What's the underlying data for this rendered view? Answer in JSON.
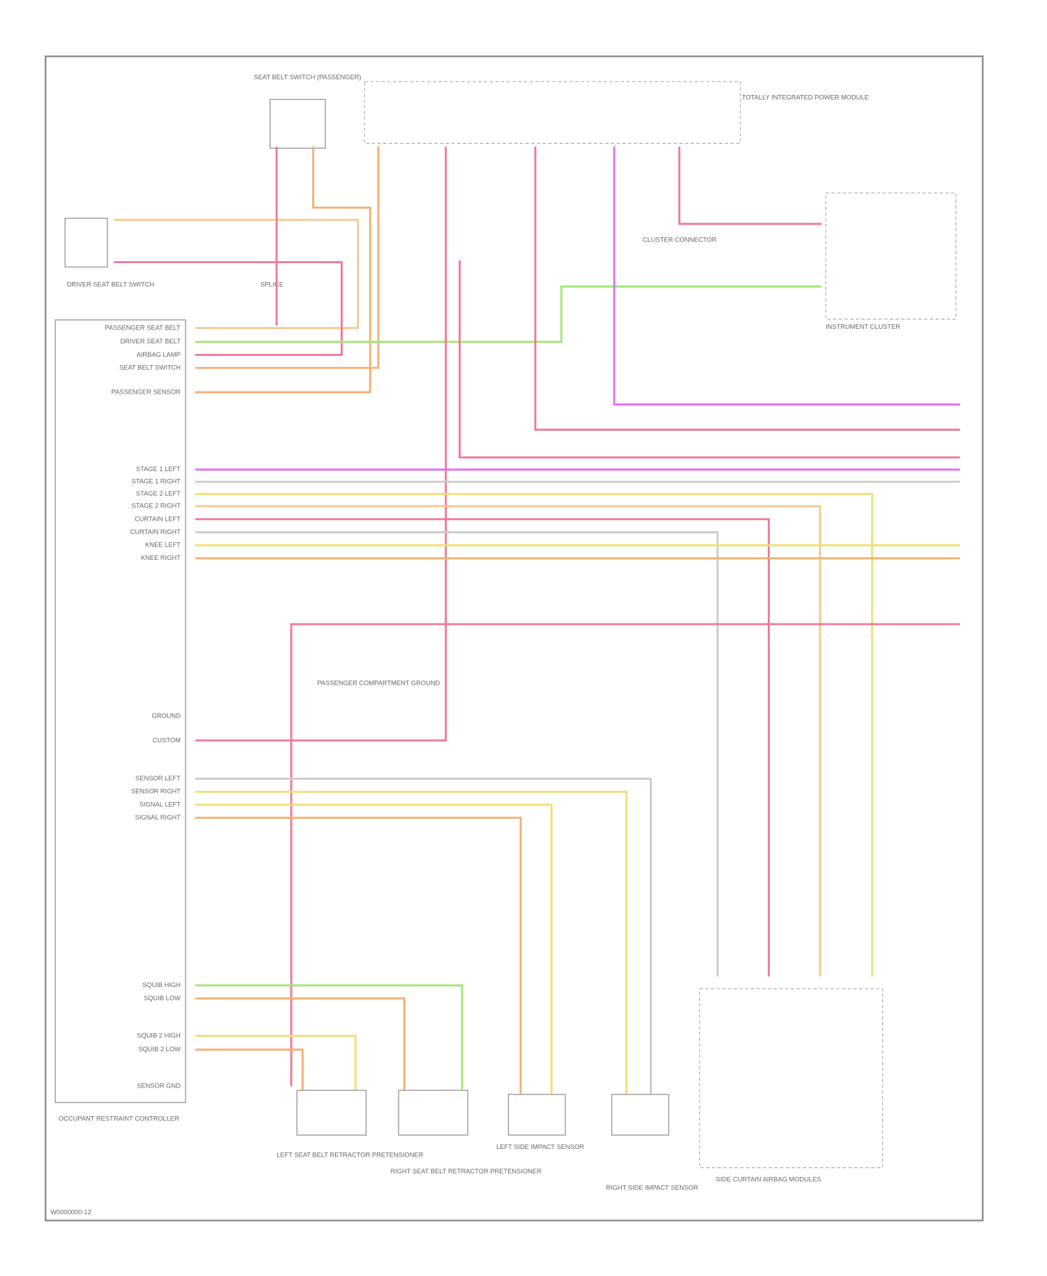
{
  "frame": {
    "footer": "W0000000-12"
  },
  "components": {
    "seat_switch": "SEAT BELT SWITCH (PASSENGER)",
    "fuse_block": "TOTALLY INTEGRATED POWER MODULE",
    "driver_belt": "DRIVER SEAT BELT SWITCH",
    "splice": "SPLICE",
    "cluster": "INSTRUMENT CLUSTER",
    "cluster_conn": "CLUSTER CONNECTOR",
    "ground": "PASSENGER COMPARTMENT GROUND",
    "module": "OCCUPANT RESTRAINT CONTROLLER",
    "lf_pretensioner": "LEFT SEAT BELT RETRACTOR PRETENSIONER",
    "rf_pretensioner": "RIGHT SEAT BELT RETRACTOR PRETENSIONER",
    "lf_side": "LEFT SIDE IMPACT SENSOR",
    "rf_side": "RIGHT SIDE IMPACT SENSOR",
    "curtain": "SIDE CURTAIN AIRBAG MODULES"
  },
  "pins": [
    "PASSENGER SEAT BELT",
    "DRIVER SEAT BELT",
    "AIRBAG LAMP",
    "SEAT BELT SWITCH",
    "PASSENGER SENSOR",
    "STAGE 1 LEFT",
    "STAGE 1 RIGHT",
    "STAGE 2 LEFT",
    "STAGE 2 RIGHT",
    "CURTAIN LEFT",
    "CURTAIN RIGHT",
    "KNEE LEFT",
    "KNEE RIGHT",
    "GROUND",
    "CUSTOM",
    "SENSOR LEFT",
    "SENSOR RIGHT",
    "SIGNAL LEFT",
    "SIGNAL RIGHT",
    "SQUIB HIGH",
    "SQUIB LOW",
    "SQUIB 2 HIGH",
    "SQUIB 2 LOW",
    "SENSOR GND"
  ]
}
